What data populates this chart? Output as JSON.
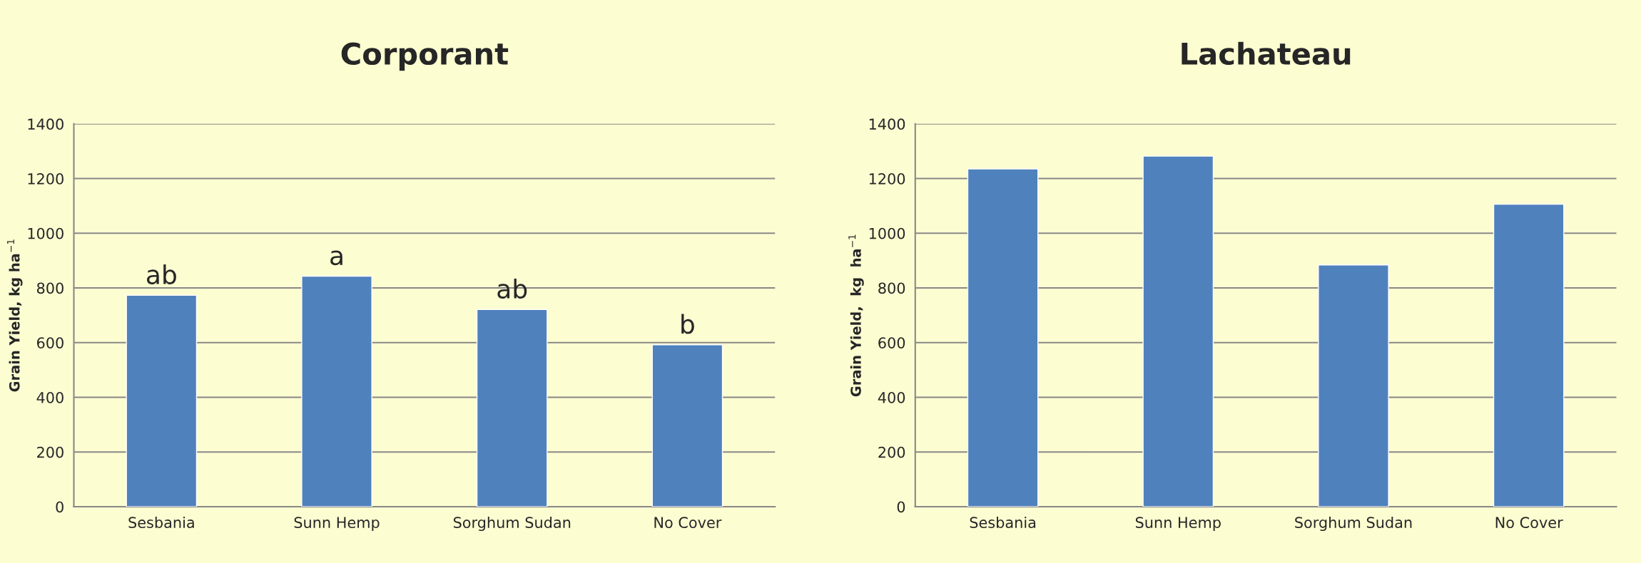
{
  "chart_data": [
    {
      "type": "bar",
      "title": "Corporant",
      "ylabel": "Grain Yield, kg ha$^{−1}$",
      "categories": [
        "Sesbania",
        "Sunn Hemp",
        "Sorghum Sudan",
        "No Cover"
      ],
      "values": [
        773,
        843,
        721,
        592
      ],
      "color": "#4f81bd",
      "ylim": [
        0,
        1400
      ],
      "yticks": [
        0,
        200,
        400,
        600,
        800,
        1000,
        1200,
        1400
      ],
      "grid": "y",
      "annotations": [
        {
          "text": "ab",
          "x": "Sesbania",
          "y": 773
        },
        {
          "text": "a",
          "x": "Sunn Hemp",
          "y": 843
        },
        {
          "text": "ab",
          "x": "Sorghum Sudan",
          "y": 721
        },
        {
          "text": "b",
          "x": "No Cover",
          "y": 592
        }
      ]
    },
    {
      "type": "bar",
      "title": "Lachateau",
      "ylabel": "Grain Yield,  kg  ha$^{−1}$",
      "categories": [
        "Sesbania",
        "Sunn Hemp",
        "Sorghum Sudan",
        "No Cover"
      ],
      "values": [
        1235,
        1282,
        884,
        1106
      ],
      "color": "#4f81bd",
      "ylim": [
        0,
        1400
      ],
      "yticks": [
        0,
        200,
        400,
        600,
        800,
        1000,
        1200,
        1400
      ],
      "grid": "y"
    }
  ]
}
